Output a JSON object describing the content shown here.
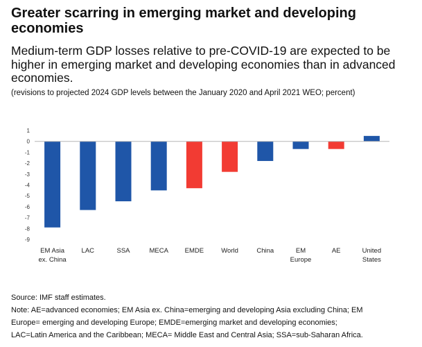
{
  "title": "Greater scarring in emerging market and developing economies",
  "subtitle": "Medium-term GDP losses relative to pre-COVID-19 are expected to be higher in emerging market and developing economies than in advanced economies.",
  "units_note": "(revisions to projected 2024 GDP levels between the January 2020 and April 2021 WEO; percent)",
  "source": "Source: IMF staff estimates.",
  "note_lines": [
    "Note: AE=advanced economies; EM Asia ex. China=emerging and developing Asia excluding China; EM",
    "Europe= emerging and developing Europe; EMDE=emerging market and developing economies;",
    "LAC=Latin America and the Caribbean; MECA= Middle East and Central Asia; SSA=sub-Saharan Africa."
  ],
  "colors": {
    "blue": "#1f56a8",
    "red": "#f23b33",
    "axis": "#b5b5b5"
  },
  "chart_data": {
    "type": "bar",
    "categories": [
      [
        "EM Asia",
        "ex. China"
      ],
      [
        "LAC"
      ],
      [
        "SSA"
      ],
      [
        "MECA"
      ],
      [
        "EMDE"
      ],
      [
        "World"
      ],
      [
        "China"
      ],
      [
        "EM",
        "Europe"
      ],
      [
        "AE"
      ],
      [
        "United",
        "States"
      ]
    ],
    "values": [
      -7.9,
      -6.3,
      -5.5,
      -4.5,
      -4.3,
      -2.8,
      -1.8,
      -0.7,
      -0.7,
      0.5
    ],
    "highlight": [
      false,
      false,
      false,
      false,
      true,
      true,
      false,
      false,
      true,
      false
    ],
    "ylim": [
      -9,
      1
    ],
    "yticks": [
      1,
      0,
      -1,
      -2,
      -3,
      -4,
      -5,
      -6,
      -7,
      -8,
      -9
    ],
    "grid": false,
    "legend": "none"
  }
}
